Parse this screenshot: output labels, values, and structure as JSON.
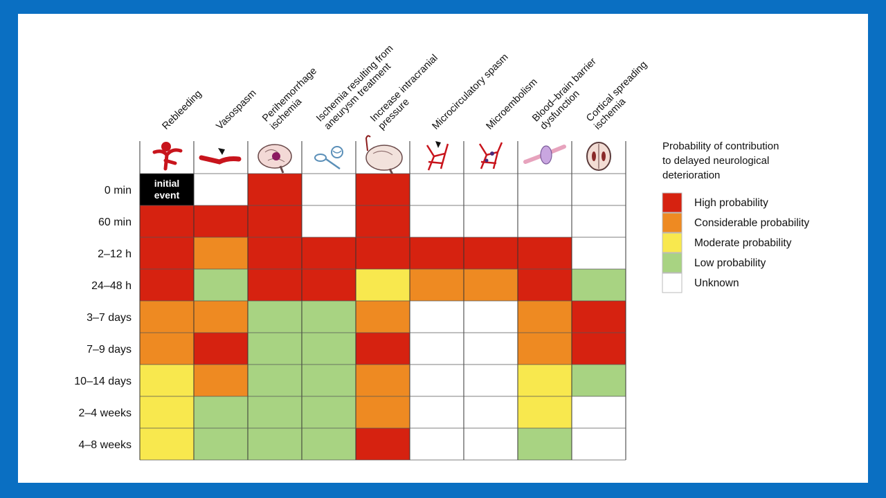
{
  "chart_data": {
    "type": "heatmap",
    "title": "Probability of contribution to delayed neurological deterioration",
    "columns": [
      {
        "lines": [
          "Rebleeding"
        ]
      },
      {
        "lines": [
          "Vasospasm"
        ]
      },
      {
        "lines": [
          "Perihemorrhage",
          "ischemia"
        ]
      },
      {
        "lines": [
          "Ischemia resulting from",
          "aneurysm treatment"
        ]
      },
      {
        "lines": [
          "Increase intracranial",
          "pressure"
        ]
      },
      {
        "lines": [
          "Microcirculatory spasm"
        ]
      },
      {
        "lines": [
          "Microembolism"
        ]
      },
      {
        "lines": [
          "Blood–brain barrier",
          "dysfunction"
        ]
      },
      {
        "lines": [
          "Cortical spreading",
          "ischemia"
        ]
      }
    ],
    "icons": [
      "aneurysm-rupture-icon",
      "vessel-spasm-icon",
      "brain-hemorrhage-icon",
      "coil-device-icon",
      "brain-pressure-icon",
      "microvessel-spasm-icon",
      "microvessel-embolism-icon",
      "barrier-leak-icon",
      "brain-scan-icon"
    ],
    "rows": [
      "0 min",
      "60 min",
      "2–12 h",
      "24–48 h",
      "3–7 days",
      "7–9 days",
      "10–14 days",
      "2–4 weeks",
      "4–8 weeks"
    ],
    "levels": {
      "H": {
        "label": "High probability",
        "color": "#d62210"
      },
      "C": {
        "label": "Considerable probability",
        "color": "#ee8a22"
      },
      "M": {
        "label": "Moderate probability",
        "color": "#f8e84e"
      },
      "L": {
        "label": "Low probability",
        "color": "#a8d382"
      },
      "U": {
        "label": "Unknown",
        "color": "#ffffff"
      }
    },
    "legend_order": [
      "H",
      "C",
      "M",
      "L",
      "U"
    ],
    "matrix": [
      [
        "E",
        "U",
        "H",
        "U",
        "H",
        "U",
        "U",
        "U",
        "U"
      ],
      [
        "H",
        "H",
        "H",
        "U",
        "H",
        "U",
        "U",
        "U",
        "U"
      ],
      [
        "H",
        "C",
        "H",
        "H",
        "H",
        "H",
        "H",
        "H",
        "U"
      ],
      [
        "H",
        "L",
        "H",
        "H",
        "M",
        "C",
        "C",
        "H",
        "L"
      ],
      [
        "C",
        "C",
        "L",
        "L",
        "C",
        "U",
        "U",
        "C",
        "H"
      ],
      [
        "C",
        "H",
        "L",
        "L",
        "H",
        "U",
        "U",
        "C",
        "H"
      ],
      [
        "M",
        "C",
        "L",
        "L",
        "C",
        "U",
        "U",
        "M",
        "L"
      ],
      [
        "M",
        "L",
        "L",
        "L",
        "C",
        "U",
        "U",
        "M",
        "U"
      ],
      [
        "M",
        "L",
        "L",
        "L",
        "H",
        "U",
        "U",
        "L",
        "U"
      ]
    ],
    "special_cell": {
      "lines": [
        "initial",
        "event"
      ],
      "color": "#000000"
    },
    "legend_title_lines": [
      "Probability of contribution",
      "to delayed neurological",
      "deterioration"
    ],
    "legend_position": "right"
  }
}
